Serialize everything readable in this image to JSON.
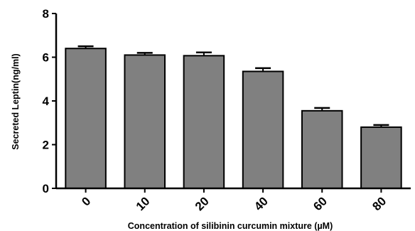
{
  "chart_data": {
    "type": "bar",
    "categories": [
      "0",
      "10",
      "20",
      "40",
      "60",
      "80"
    ],
    "values": [
      6.4,
      6.1,
      6.07,
      5.35,
      3.55,
      2.8
    ],
    "errors": [
      0.1,
      0.1,
      0.15,
      0.15,
      0.13,
      0.1
    ],
    "xlabel": "Concentration of silibinin curcumin mixture (µM)",
    "ylabel": "Secreted Leptin(ng/ml)",
    "ylim": [
      0,
      8
    ],
    "yticks": [
      0,
      2,
      4,
      6,
      8
    ],
    "grid": false,
    "bar_color": "#808080",
    "edge_color": "#000000"
  }
}
